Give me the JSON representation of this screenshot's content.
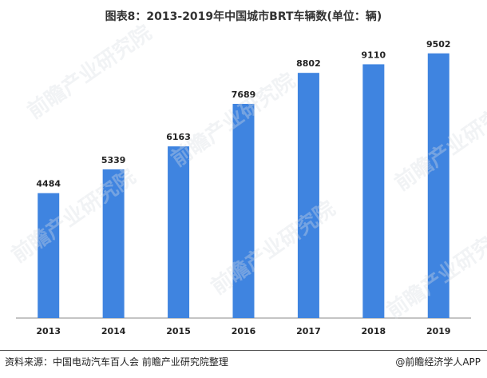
{
  "title": "图表8：2013-2019年中国城市BRT车辆数(单位：辆)",
  "footer": {
    "source": "资料来源：中国电动汽车百人会 前瞻产业研究院整理",
    "brand": "@前瞻经济学人APP"
  },
  "watermark": "前瞻产业研究院",
  "colors": {
    "bar": "#3f84e0",
    "axis": "#888888"
  },
  "chart_data": {
    "type": "bar",
    "title": "图表8：2013-2019年中国城市BRT车辆数(单位：辆)",
    "categories": [
      "2013",
      "2014",
      "2015",
      "2016",
      "2017",
      "2018",
      "2019"
    ],
    "values": [
      4484,
      5339,
      6163,
      7689,
      8802,
      9110,
      9502
    ],
    "xlabel": "",
    "ylabel": "",
    "ylim": [
      0,
      10270
    ],
    "grid": false,
    "data_labels": true
  }
}
